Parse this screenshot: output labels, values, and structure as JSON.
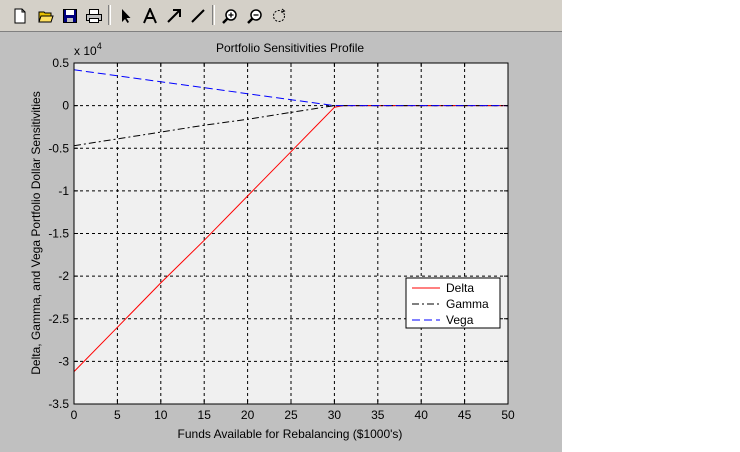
{
  "toolbar": {
    "buttons": [
      {
        "name": "new-figure-icon"
      },
      {
        "name": "open-file-icon"
      },
      {
        "name": "save-icon"
      },
      {
        "name": "print-icon"
      },
      {
        "name": "edit-plot-arrow-icon"
      },
      {
        "name": "insert-text-icon"
      },
      {
        "name": "insert-arrow-icon"
      },
      {
        "name": "insert-line-icon"
      },
      {
        "name": "zoom-in-icon"
      },
      {
        "name": "zoom-out-icon"
      },
      {
        "name": "rotate-3d-icon"
      }
    ]
  },
  "colors": {
    "figure_bg": "#c0c0c0",
    "axes_bg": "#f0f0f0",
    "delta": "#ff0000",
    "gamma": "#000000",
    "vega": "#0000ff"
  },
  "chart_data": {
    "type": "line",
    "title": "Portfolio Sensitivities Profile",
    "xlabel": "Funds Available for Rebalancing ($1000's)",
    "ylabel": "Delta, Gamma, and Vega Portfolio Dollar Sensitivities",
    "y_exponent_label": "x 10",
    "y_exponent_power": "4",
    "xlim": [
      0,
      50
    ],
    "ylim": [
      -3.5,
      0.5
    ],
    "xticks": [
      0,
      5,
      10,
      15,
      20,
      25,
      30,
      35,
      40,
      45,
      50
    ],
    "xtick_labels": [
      "0",
      "5",
      "10",
      "15",
      "20",
      "25",
      "30",
      "35",
      "40",
      "45",
      "50"
    ],
    "yticks": [
      0.5,
      0,
      -0.5,
      -1,
      -1.5,
      -2,
      -2.5,
      -3,
      -3.5
    ],
    "ytick_labels": [
      "0.5",
      "0",
      "-0.5",
      "-1",
      "-1.5",
      "-2",
      "-2.5",
      "-3",
      "-3.5"
    ],
    "grid": true,
    "legend_position": "lower-right",
    "series": [
      {
        "name": "Delta",
        "color": "#ff0000",
        "dash": "solid",
        "x": [
          0,
          5,
          10,
          15,
          20,
          25,
          30,
          31,
          35,
          40,
          45,
          50
        ],
        "y": [
          -3.12,
          -2.6,
          -2.08,
          -1.58,
          -1.06,
          -0.54,
          -0.02,
          0,
          0,
          0,
          0,
          0
        ]
      },
      {
        "name": "Gamma",
        "color": "#000000",
        "dash": "dashdot",
        "x": [
          0,
          5,
          10,
          15,
          20,
          25,
          30,
          31,
          35,
          40,
          45,
          50
        ],
        "y": [
          -0.47,
          -0.39,
          -0.31,
          -0.23,
          -0.16,
          -0.08,
          0,
          0,
          0,
          0,
          0,
          0
        ]
      },
      {
        "name": "Vega",
        "color": "#0000ff",
        "dash": "dashed",
        "x": [
          0,
          5,
          10,
          15,
          20,
          25,
          30,
          31,
          35,
          40,
          45,
          50
        ],
        "y": [
          0.42,
          0.35,
          0.28,
          0.21,
          0.14,
          0.07,
          0,
          0,
          0,
          0,
          0,
          0
        ]
      }
    ]
  }
}
